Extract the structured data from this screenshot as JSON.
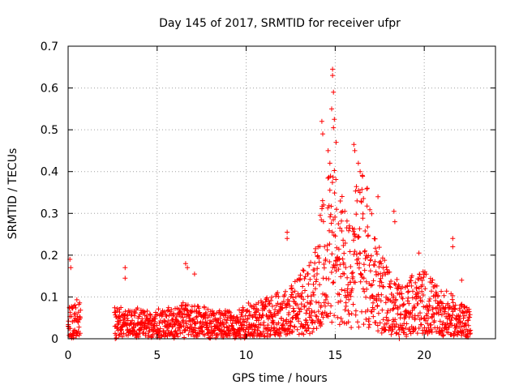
{
  "chart_data": {
    "type": "scatter",
    "title": "Day 145 of 2017, SRMTID for receiver ufpr",
    "xlabel": "GPS time / hours",
    "ylabel": "SRMTID / TECUs",
    "xlim": [
      0,
      24
    ],
    "ylim": [
      0,
      0.7
    ],
    "xticks": [
      0,
      5,
      10,
      15,
      20
    ],
    "yticks": [
      0,
      0.1,
      0.2,
      0.3,
      0.4,
      0.5,
      0.6,
      0.7
    ],
    "grid": true,
    "marker": "+",
    "color": "#ff0000",
    "series": [
      {
        "name": "SRMTID",
        "profile": [
          [
            0.0,
            0.04
          ],
          [
            0.5,
            0.05
          ],
          [
            2.8,
            0.04
          ],
          [
            3.5,
            0.04
          ],
          [
            5.0,
            0.035
          ],
          [
            6.5,
            0.045
          ],
          [
            8.0,
            0.04
          ],
          [
            9.5,
            0.035
          ],
          [
            10.5,
            0.05
          ],
          [
            11.5,
            0.06
          ],
          [
            12.5,
            0.07
          ],
          [
            13.2,
            0.09
          ],
          [
            13.8,
            0.11
          ],
          [
            14.3,
            0.18
          ],
          [
            14.8,
            0.25
          ],
          [
            15.3,
            0.2
          ],
          [
            15.8,
            0.15
          ],
          [
            16.2,
            0.2
          ],
          [
            16.6,
            0.22
          ],
          [
            17.0,
            0.18
          ],
          [
            17.5,
            0.12
          ],
          [
            18.0,
            0.09
          ],
          [
            18.6,
            0.07
          ],
          [
            19.3,
            0.08
          ],
          [
            20.0,
            0.09
          ],
          [
            20.7,
            0.07
          ],
          [
            21.3,
            0.06
          ],
          [
            21.8,
            0.05
          ],
          [
            22.6,
            0.04
          ]
        ],
        "gaps": [
          [
            0.7,
            2.6
          ]
        ],
        "peaks": [
          [
            0.1,
            0.19
          ],
          [
            0.15,
            0.17
          ],
          [
            3.2,
            0.17
          ],
          [
            3.2,
            0.145
          ],
          [
            6.6,
            0.18
          ],
          [
            6.7,
            0.17
          ],
          [
            7.1,
            0.155
          ],
          [
            12.3,
            0.255
          ],
          [
            12.3,
            0.24
          ],
          [
            14.25,
            0.52
          ],
          [
            14.3,
            0.49
          ],
          [
            14.85,
            0.645
          ],
          [
            14.85,
            0.63
          ],
          [
            14.9,
            0.59
          ],
          [
            14.8,
            0.55
          ],
          [
            14.95,
            0.525
          ],
          [
            14.9,
            0.505
          ],
          [
            15.05,
            0.47
          ],
          [
            14.6,
            0.45
          ],
          [
            14.7,
            0.42
          ],
          [
            16.05,
            0.465
          ],
          [
            16.1,
            0.45
          ],
          [
            16.3,
            0.42
          ],
          [
            16.4,
            0.4
          ],
          [
            16.8,
            0.36
          ],
          [
            17.4,
            0.34
          ],
          [
            18.3,
            0.305
          ],
          [
            18.35,
            0.28
          ],
          [
            19.7,
            0.205
          ],
          [
            21.6,
            0.24
          ],
          [
            21.6,
            0.22
          ],
          [
            22.1,
            0.14
          ],
          [
            2.65,
            0.0
          ],
          [
            18.6,
            0.0
          ]
        ]
      }
    ]
  }
}
